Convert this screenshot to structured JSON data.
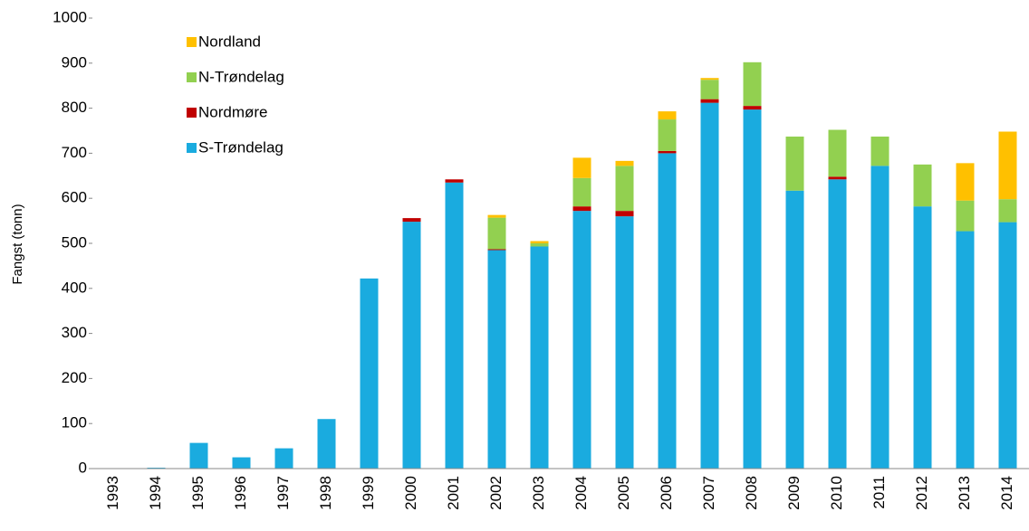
{
  "chart_data": {
    "type": "stacked_bar",
    "y_label": "Fangst (tonn)",
    "categories": [
      "1993",
      "1994",
      "1995",
      "1996",
      "1997",
      "1998",
      "1999",
      "2000",
      "2001",
      "2002",
      "2003",
      "2004",
      "2005",
      "2006",
      "2007",
      "2008",
      "2009",
      "2010",
      "2011",
      "2012",
      "2013",
      "2014"
    ],
    "series": [
      {
        "name": "S-Trøndelag",
        "color": "#1aabdf",
        "values": [
          0,
          2,
          57,
          25,
          45,
          110,
          422,
          548,
          635,
          485,
          493,
          572,
          560,
          700,
          812,
          797,
          617,
          642,
          672,
          582,
          527,
          547
        ]
      },
      {
        "name": "Nordmøre",
        "color": "#c00000",
        "values": [
          0,
          0,
          0,
          0,
          0,
          0,
          0,
          8,
          7,
          2,
          0,
          10,
          12,
          5,
          8,
          8,
          0,
          6,
          0,
          0,
          0,
          0
        ]
      },
      {
        "name": "N-Trøndelag",
        "color": "#92d050",
        "values": [
          0,
          0,
          0,
          0,
          0,
          0,
          0,
          0,
          0,
          70,
          7,
          63,
          100,
          70,
          43,
          97,
          120,
          104,
          65,
          93,
          68,
          51
        ]
      },
      {
        "name": "Nordland",
        "color": "#ffc000",
        "values": [
          0,
          0,
          0,
          0,
          0,
          0,
          0,
          0,
          0,
          6,
          5,
          45,
          11,
          18,
          4,
          0,
          0,
          0,
          0,
          0,
          83,
          150
        ]
      }
    ],
    "ylim": [
      0,
      1000
    ],
    "yticks": [
      0,
      100,
      200,
      300,
      400,
      500,
      600,
      700,
      800,
      900,
      1000
    ]
  }
}
